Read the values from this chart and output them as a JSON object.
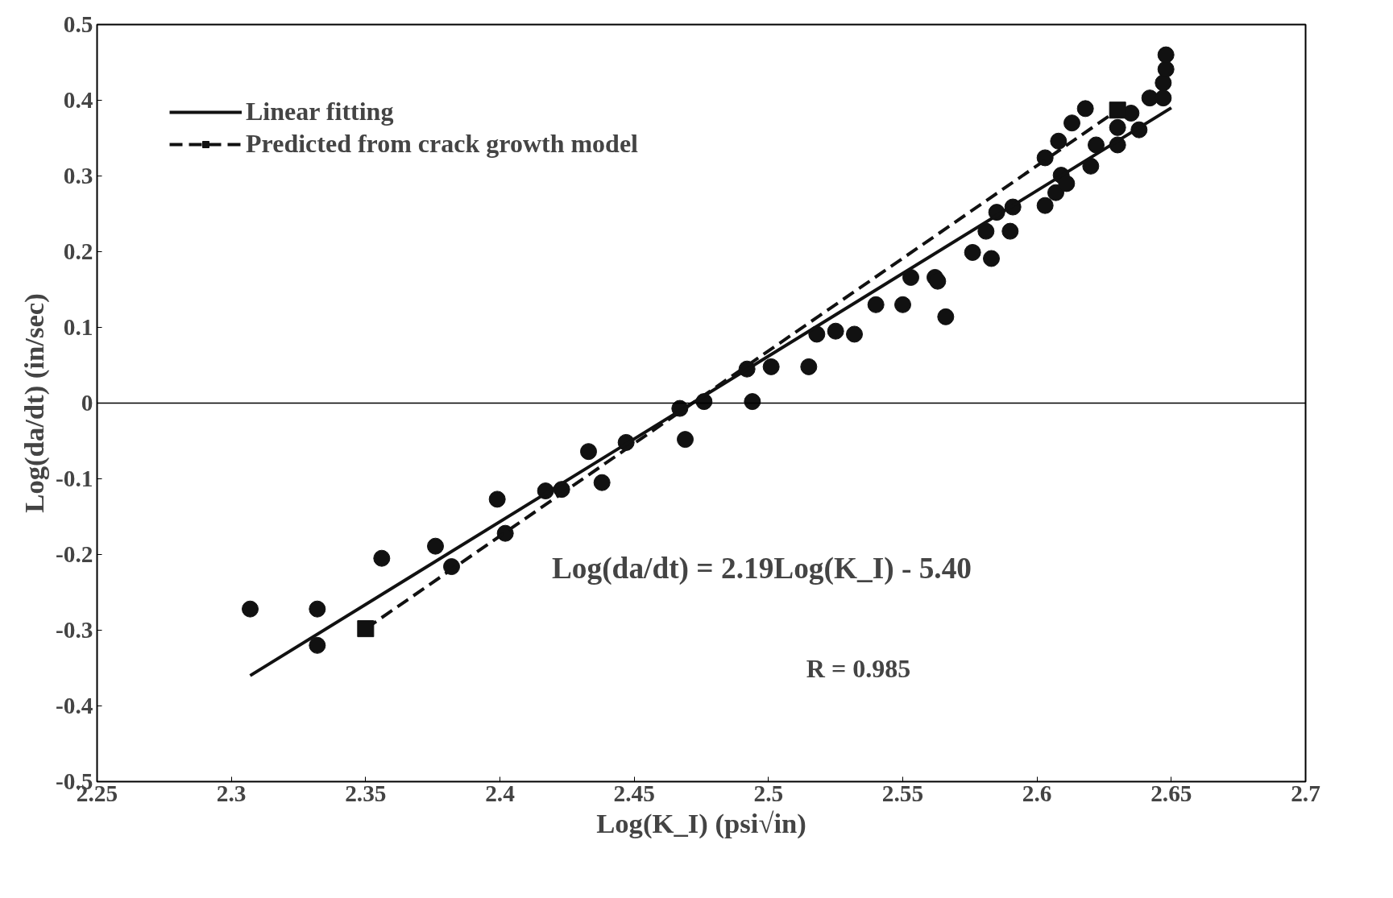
{
  "chart_data": {
    "type": "scatter",
    "xlabel": "Log(K_I) (psi√in)",
    "ylabel": "Log(da/dt) (in/sec)",
    "xlim": [
      2.25,
      2.7
    ],
    "xticks": [
      2.25,
      2.3,
      2.35,
      2.4,
      2.45,
      2.5,
      2.55,
      2.6,
      2.65,
      2.7
    ],
    "ylim": [
      -0.5,
      0.5
    ],
    "yticks": [
      -0.5,
      -0.4,
      -0.3,
      -0.2,
      -0.1,
      0,
      0.1,
      0.2,
      0.3,
      0.4,
      0.5
    ],
    "grid": false,
    "legend": "top left",
    "marker": "circle",
    "ref_lines": [
      {
        "axis": "y",
        "value": 0,
        "color": "#000000"
      }
    ],
    "annotations": [
      "Log(da/dt) = 2.19Log(K_I) - 5.40",
      "R = 0.985"
    ],
    "series": [
      {
        "color": "#111111",
        "x": [
          2.307,
          2.332,
          2.332,
          2.356,
          2.376,
          2.382,
          2.399,
          2.402,
          2.417,
          2.423,
          2.433,
          2.438,
          2.447,
          2.469,
          2.467,
          2.476,
          2.492,
          2.494,
          2.501,
          2.515,
          2.518,
          2.525,
          2.532,
          2.54,
          2.55,
          2.553,
          2.562,
          2.563,
          2.566,
          2.576,
          2.581,
          2.583,
          2.585,
          2.591,
          2.59,
          2.603,
          2.603,
          2.607,
          2.608,
          2.609,
          2.611,
          2.613,
          2.618,
          2.62,
          2.622,
          2.63,
          2.63,
          2.635,
          2.638,
          2.642,
          2.647,
          2.647,
          2.648,
          2.648
        ],
        "values": [
          -0.272,
          -0.272,
          -0.32,
          -0.205,
          -0.189,
          -0.216,
          -0.127,
          -0.172,
          -0.116,
          -0.114,
          -0.064,
          -0.105,
          -0.052,
          -0.048,
          -0.007,
          0.002,
          0.045,
          0.002,
          0.048,
          0.048,
          0.091,
          0.095,
          0.091,
          0.13,
          0.13,
          0.166,
          0.166,
          0.161,
          0.114,
          0.199,
          0.227,
          0.191,
          0.252,
          0.259,
          0.227,
          0.261,
          0.324,
          0.278,
          0.346,
          0.301,
          0.29,
          0.37,
          0.389,
          0.313,
          0.341,
          0.364,
          0.341,
          0.383,
          0.361,
          0.403,
          0.403,
          0.423,
          0.441,
          0.46
        ]
      },
      {
        "type": "line",
        "name": "Linear fitting",
        "color": "#111111",
        "line_style": "solid",
        "marker": "none",
        "x": [
          2.307,
          2.65
        ],
        "values": [
          -0.36,
          0.39
        ]
      },
      {
        "type": "line",
        "name": "Predicted from crack growth model",
        "color": "#111111",
        "line_style": "dashed",
        "marker": "square",
        "x": [
          2.35,
          2.63
        ],
        "values": [
          -0.298,
          0.387
        ]
      }
    ]
  }
}
